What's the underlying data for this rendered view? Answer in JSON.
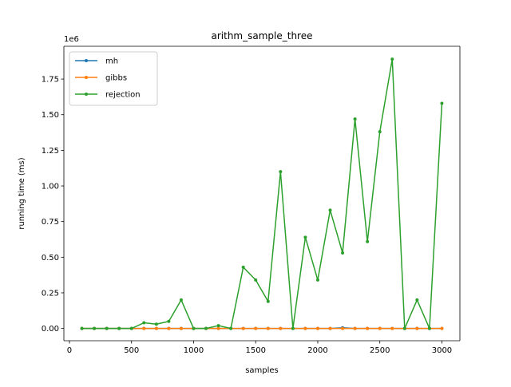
{
  "chart_data": {
    "type": "line",
    "title": "arithm_sample_three",
    "xlabel": "samples",
    "ylabel": "running time (ms)",
    "y_offset_label": "1e6",
    "xlim": [
      -45,
      3145
    ],
    "ylim": [
      -86000,
      1980000
    ],
    "x_ticks": [
      {
        "value": 0,
        "label": "0"
      },
      {
        "value": 500,
        "label": "500"
      },
      {
        "value": 1000,
        "label": "1000"
      },
      {
        "value": 1500,
        "label": "1500"
      },
      {
        "value": 2000,
        "label": "2000"
      },
      {
        "value": 2500,
        "label": "2500"
      },
      {
        "value": 3000,
        "label": "3000"
      }
    ],
    "y_ticks": [
      {
        "value": 0,
        "label": "0.00"
      },
      {
        "value": 250000,
        "label": "0.25"
      },
      {
        "value": 500000,
        "label": "0.50"
      },
      {
        "value": 750000,
        "label": "0.75"
      },
      {
        "value": 1000000,
        "label": "1.00"
      },
      {
        "value": 1250000,
        "label": "1.25"
      },
      {
        "value": 1500000,
        "label": "1.50"
      },
      {
        "value": 1750000,
        "label": "1.75"
      }
    ],
    "grid": false,
    "legend_position": "top-left",
    "x": [
      100,
      200,
      300,
      400,
      500,
      600,
      700,
      800,
      900,
      1000,
      1100,
      1200,
      1300,
      1400,
      1500,
      1600,
      1700,
      1800,
      1900,
      2000,
      2100,
      2200,
      2300,
      2400,
      2500,
      2600,
      2700,
      2800,
      2900,
      3000
    ],
    "series": [
      {
        "name": "mh",
        "color": "#1f77b4",
        "values": [
          0,
          0,
          0,
          0,
          0,
          0,
          0,
          0,
          0,
          0,
          0,
          0,
          0,
          0,
          0,
          0,
          0,
          0,
          0,
          0,
          0,
          5000,
          0,
          0,
          0,
          0,
          0,
          0,
          0,
          0
        ]
      },
      {
        "name": "gibbs",
        "color": "#ff7f0e",
        "values": [
          0,
          0,
          0,
          0,
          0,
          0,
          0,
          0,
          0,
          0,
          0,
          0,
          0,
          0,
          0,
          0,
          0,
          0,
          0,
          0,
          0,
          0,
          0,
          0,
          0,
          0,
          0,
          0,
          0,
          0
        ]
      },
      {
        "name": "rejection",
        "color": "#2ca02c",
        "values": [
          0,
          0,
          0,
          0,
          0,
          40000,
          30000,
          50000,
          200000,
          0,
          0,
          20000,
          0,
          430000,
          340000,
          190000,
          1100000,
          0,
          640000,
          340000,
          830000,
          530000,
          1470000,
          610000,
          1380000,
          1890000,
          0,
          200000,
          0,
          1580000
        ]
      }
    ]
  }
}
